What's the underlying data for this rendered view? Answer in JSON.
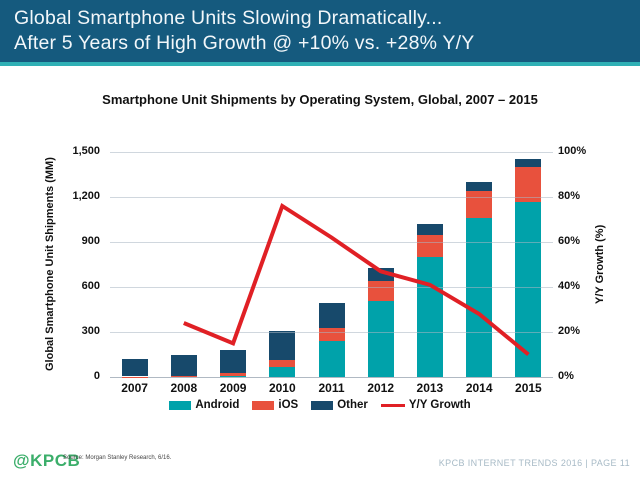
{
  "header": {
    "line1": "Global Smartphone Units Slowing Dramatically...",
    "line2": "After 5 Years of High Growth @ +10% vs. +28% Y/Y"
  },
  "chart_data": {
    "type": "bar",
    "subtype": "stacked-bar-with-line",
    "title": "Smartphone Unit Shipments by Operating System, Global, 2007 – 2015",
    "categories": [
      "2007",
      "2008",
      "2009",
      "2010",
      "2011",
      "2012",
      "2013",
      "2014",
      "2015"
    ],
    "series": [
      {
        "name": "Android",
        "type": "bar",
        "color": "#00A2AA",
        "values": [
          0,
          0,
          5,
          70,
          240,
          505,
          800,
          1060,
          1170
        ]
      },
      {
        "name": "iOS",
        "type": "bar",
        "color": "#E8513D",
        "values": [
          3,
          10,
          22,
          45,
          90,
          135,
          150,
          180,
          230
        ]
      },
      {
        "name": "Other",
        "type": "bar",
        "color": "#17496B",
        "values": [
          119,
          140,
          150,
          190,
          165,
          85,
          70,
          60,
          55
        ]
      },
      {
        "name": "Y/Y Growth",
        "type": "line",
        "color": "#E02025",
        "axis": "right",
        "values": [
          null,
          24,
          15,
          76,
          62,
          47,
          41,
          28,
          10
        ]
      }
    ],
    "left_axis": {
      "label": "Global Smartphone Unit Shipments (MM)",
      "ticks": [
        "0",
        "300",
        "600",
        "900",
        "1,200",
        "1,500"
      ],
      "min": 0,
      "max": 1500
    },
    "right_axis": {
      "label": "Y/Y Growth (%)",
      "ticks": [
        "0%",
        "20%",
        "40%",
        "60%",
        "80%",
        "100%"
      ],
      "min": 0,
      "max": 100
    },
    "legend_position": "bottom",
    "grid": true
  },
  "footer": {
    "logo": "@KPCB",
    "source": "Source: Morgan Stanley Research, 6/16.",
    "page": "KPCB INTERNET TRENDS 2016  |  PAGE 11"
  },
  "colors": {
    "header_bg": "#155A7E",
    "accent_teal": "#2FB0B5",
    "logo_green": "#3BAE6A",
    "footer_text": "#A7BAC6"
  }
}
